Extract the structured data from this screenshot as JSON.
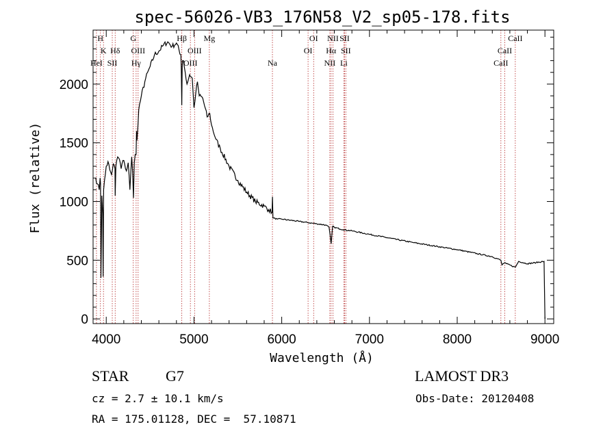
{
  "chart_data": {
    "type": "line",
    "title": "spec-56026-VB3_176N58_V2_sp05-178.fits",
    "xlabel": "Wavelength (Å)",
    "ylabel": "Flux (relative)",
    "xlim": [
      3850,
      9100
    ],
    "ylim": [
      -40,
      2460
    ],
    "xticks": [
      4000,
      5000,
      6000,
      7000,
      8000,
      9000
    ],
    "yticks": [
      0,
      500,
      1000,
      1500,
      2000
    ],
    "series": [
      {
        "name": "spectrum",
        "x": [
          3880,
          3900,
          3920,
          3930,
          3935,
          3940,
          3950,
          3960,
          3965,
          3970,
          3980,
          4000,
          4020,
          4040,
          4060,
          4080,
          4100,
          4102,
          4110,
          4130,
          4150,
          4170,
          4190,
          4210,
          4230,
          4250,
          4270,
          4290,
          4300,
          4310,
          4320,
          4330,
          4340,
          4345,
          4350,
          4370,
          4400,
          4450,
          4500,
          4550,
          4600,
          4650,
          4700,
          4750,
          4800,
          4850,
          4855,
          4861,
          4866,
          4870,
          4880,
          4900,
          4920,
          4950,
          4980,
          5000,
          5020,
          5040,
          5060,
          5100,
          5150,
          5180,
          5200,
          5250,
          5300,
          5400,
          5500,
          5600,
          5700,
          5800,
          5850,
          5890,
          5895,
          5900,
          5950,
          6000,
          6100,
          6200,
          6300,
          6400,
          6500,
          6540,
          6563,
          6580,
          6600,
          6700,
          6800,
          7000,
          7500,
          8000,
          8400,
          8498,
          8510,
          8542,
          8560,
          8662,
          8700,
          8800,
          8900,
          8990,
          9000
        ],
        "y": [
          1200,
          1150,
          1100,
          1200,
          1150,
          350,
          1050,
          900,
          360,
          1100,
          1180,
          1300,
          1340,
          1270,
          1230,
          1320,
          1280,
          1050,
          1300,
          1380,
          1360,
          1280,
          1350,
          1320,
          1260,
          1330,
          1100,
          1380,
          1260,
          1030,
          1330,
          1400,
          1400,
          1600,
          1520,
          1780,
          1900,
          2050,
          2150,
          2250,
          2280,
          2330,
          2360,
          2320,
          2350,
          2250,
          2150,
          1820,
          2150,
          2200,
          2200,
          2100,
          2000,
          2080,
          2050,
          1800,
          1920,
          2020,
          1900,
          1880,
          1720,
          1750,
          1650,
          1530,
          1450,
          1300,
          1180,
          1080,
          1000,
          960,
          930,
          910,
          1040,
          860,
          850,
          850,
          840,
          830,
          820,
          810,
          800,
          780,
          640,
          790,
          780,
          760,
          750,
          720,
          650,
          590,
          530,
          500,
          460,
          480,
          470,
          440,
          490,
          470,
          480,
          490,
          0
        ]
      }
    ],
    "spectral_lines": [
      {
        "label": "H",
        "wl": 3933.7,
        "row": 0
      },
      {
        "label": "K",
        "wl": 3968.5,
        "row": 1
      },
      {
        "label": "HeI",
        "wl": 3888.6,
        "row": 2
      },
      {
        "label": "SII",
        "wl": 4068.6,
        "row": 2
      },
      {
        "label": "Hδ",
        "wl": 4101.7,
        "row": 1
      },
      {
        "label": "G",
        "wl": 4307.9,
        "row": 0
      },
      {
        "label": "OIII",
        "wl": 4363.2,
        "row": 1
      },
      {
        "label": "Hγ",
        "wl": 4340.5,
        "row": 2
      },
      {
        "label": "Hβ",
        "wl": 4861.3,
        "row": 0
      },
      {
        "label": "OIII",
        "wl": 4958.9,
        "row": 2
      },
      {
        "label": "OIII",
        "wl": 5006.8,
        "row": 1
      },
      {
        "label": "Mg",
        "wl": 5175.3,
        "row": 0
      },
      {
        "label": "Na",
        "wl": 5894.0,
        "row": 2
      },
      {
        "label": "OI",
        "wl": 6300.3,
        "row": 1
      },
      {
        "label": "OI",
        "wl": 6363.8,
        "row": 0
      },
      {
        "label": "NII",
        "wl": 6548.1,
        "row": 2
      },
      {
        "label": "Hα",
        "wl": 6562.8,
        "row": 1
      },
      {
        "label": "NII",
        "wl": 6583.4,
        "row": 0
      },
      {
        "label": "Li",
        "wl": 6707.8,
        "row": 2
      },
      {
        "label": "SII",
        "wl": 6716.4,
        "row": 0
      },
      {
        "label": "SII",
        "wl": 6730.8,
        "row": 1
      },
      {
        "label": "CaII",
        "wl": 8498.0,
        "row": 2
      },
      {
        "label": "CaII",
        "wl": 8542.1,
        "row": 1
      },
      {
        "label": "CaII",
        "wl": 8662.1,
        "row": 0
      }
    ],
    "line_color": "#b22222"
  },
  "footer": {
    "object_class": "STAR",
    "subclass": "G7",
    "survey": "LAMOST DR3",
    "cz": "cz = 2.7 ± 10.1 km/s",
    "obs_date": "Obs-Date: 20120408",
    "coords": "RA = 175.01128, DEC =  57.10871"
  }
}
